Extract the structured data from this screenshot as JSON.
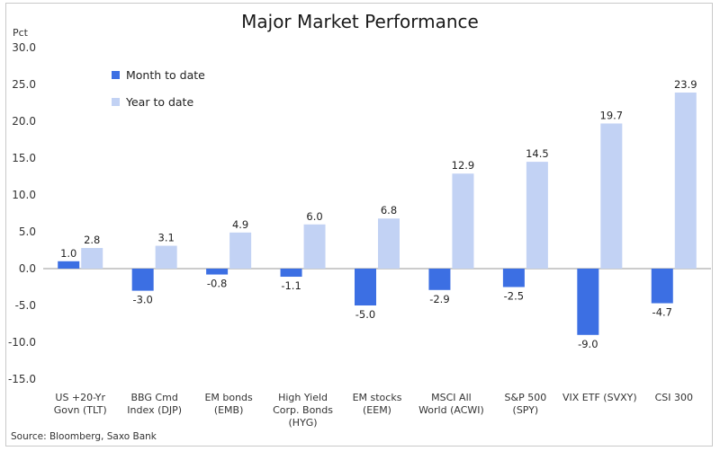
{
  "page": {
    "title": "Major Market Performance",
    "unit_label": "Pct",
    "source": "Source: Bloomberg, Saxo Bank"
  },
  "colors": {
    "month_to_date": "#3c6fe3",
    "year_to_date": "#c2d2f4",
    "axis": "#999999"
  },
  "chart_data": {
    "type": "bar",
    "title": "Major Market Performance",
    "ylabel": "Pct",
    "xlabel": "",
    "ylim": [
      -15.0,
      30.0
    ],
    "yticks": [
      "30.0",
      "25.0",
      "20.0",
      "15.0",
      "10.0",
      "5.0",
      "0.0",
      "-5.0",
      "-10.0",
      "-15.0"
    ],
    "legend_position": "top-left",
    "grid": false,
    "categories": [
      [
        "US +20-Yr",
        "Govn (TLT)"
      ],
      [
        "BBG Cmd",
        "Index (DJP)"
      ],
      [
        "EM bonds",
        "(EMB)"
      ],
      [
        "High Yield",
        "Corp. Bonds",
        "(HYG)"
      ],
      [
        "EM stocks",
        "(EEM)"
      ],
      [
        "MSCI All",
        "World (ACWI)"
      ],
      [
        "S&P 500",
        "(SPY)"
      ],
      [
        "VIX ETF (SVXY)"
      ],
      [
        "CSI 300"
      ]
    ],
    "series": [
      {
        "name": "Month to date",
        "values": [
          1.0,
          -3.0,
          -0.8,
          -1.1,
          -5.0,
          -2.9,
          -2.5,
          -9.0,
          -4.7
        ],
        "labels": [
          "1.0",
          "-3.0",
          "-0.8",
          "-1.1",
          "-5.0",
          "-2.9",
          "-2.5",
          "-9.0",
          "-4.7"
        ]
      },
      {
        "name": "Year to date",
        "values": [
          2.8,
          3.1,
          4.9,
          6.0,
          6.8,
          12.9,
          14.5,
          19.7,
          23.9
        ],
        "labels": [
          "2.8",
          "3.1",
          "4.9",
          "6.0",
          "6.8",
          "12.9",
          "14.5",
          "19.7",
          "23.9"
        ]
      }
    ]
  }
}
